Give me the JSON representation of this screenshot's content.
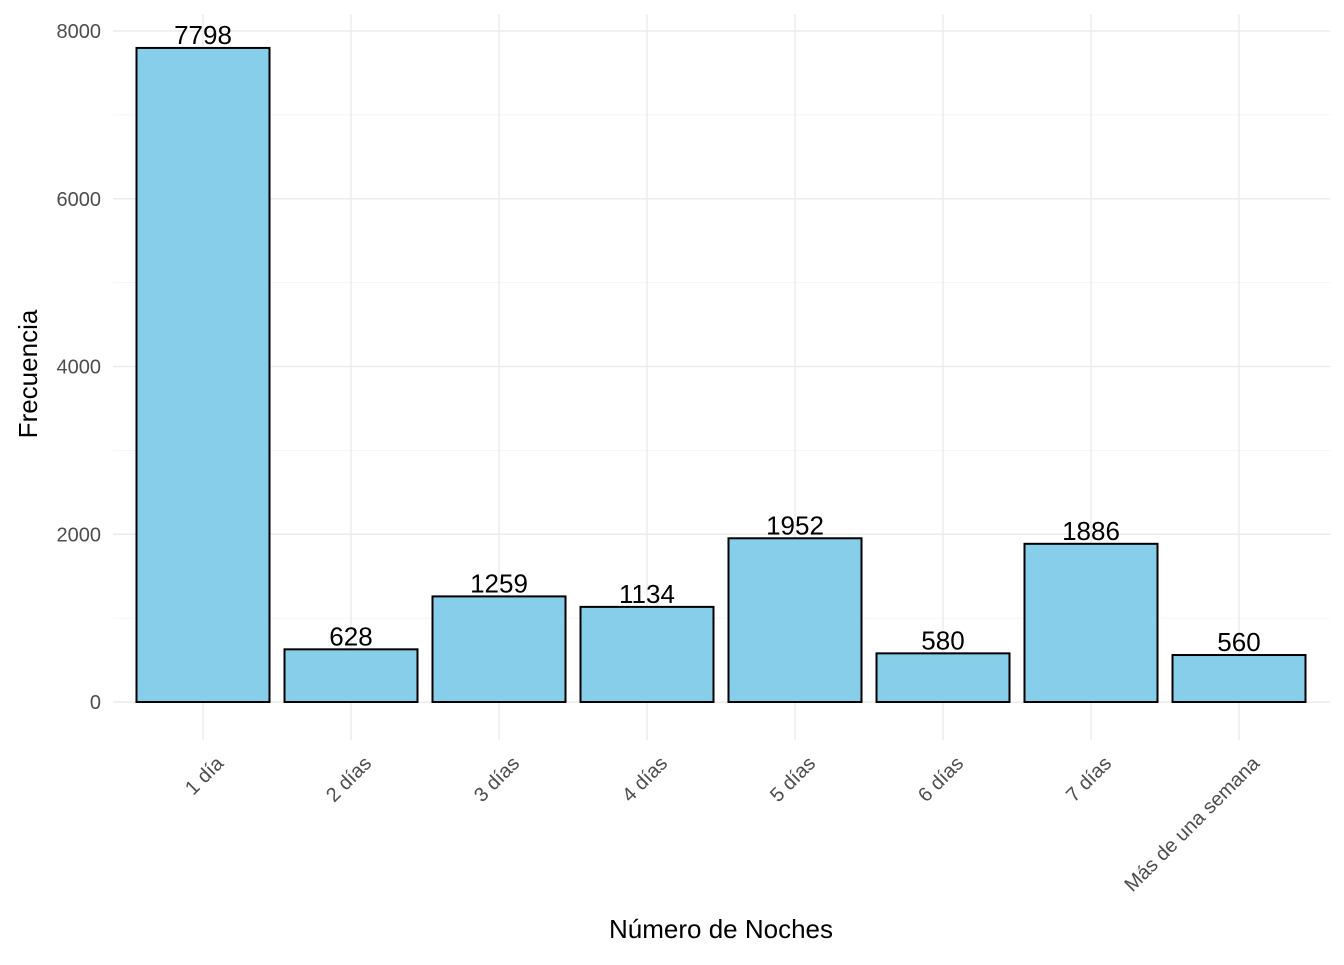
{
  "chart_data": {
    "type": "bar",
    "categories": [
      "1 día",
      "2 días",
      "3 días",
      "4 días",
      "5 días",
      "6 días",
      "7 días",
      "Más de una semana"
    ],
    "values": [
      7798,
      628,
      1259,
      1134,
      1952,
      580,
      1886,
      560
    ],
    "xlabel": "Número de Noches",
    "ylabel": "Frecuencia",
    "ylim": [
      0,
      8000
    ],
    "yticks": [
      0,
      2000,
      4000,
      6000,
      8000
    ],
    "grid": true,
    "legend": "none",
    "bar_color": "#87ceeb",
    "bar_outline": "#000000",
    "x_tick_rotation_deg": 45
  }
}
